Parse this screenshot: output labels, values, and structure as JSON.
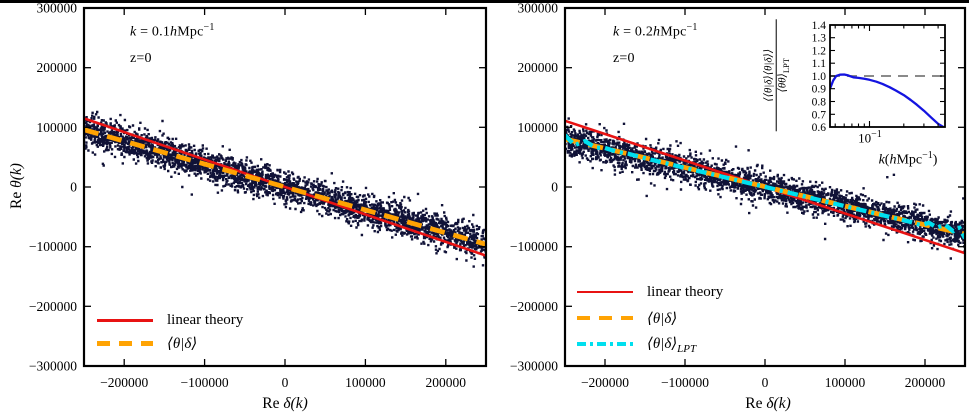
{
  "figure": {
    "background": "#ffffff",
    "top_bar_color": "#000000"
  },
  "colors": {
    "scatter": "#101237",
    "linear_theory": "#e81313",
    "measured": "#ffa303",
    "measured_lpt": "#00dfee",
    "inset_curve": "#1414e0",
    "inset_reference": "#8a8a8a",
    "axis": "#000000"
  },
  "chart_data": [
    {
      "id": "left-panel",
      "type": "scatter",
      "annotation_k": {
        "k": "k",
        "eq": " = 0.1",
        "h": "h",
        "unit": "Mpc",
        "exp": "−1"
      },
      "annotation_z": "z=0",
      "xlabel": {
        "re": "Re ",
        "math": "δ(k)"
      },
      "ylabel": {
        "re": "Re ",
        "math": "θ(k)"
      },
      "xlim": [
        -250000,
        250000
      ],
      "ylim": [
        -300000,
        300000
      ],
      "xticks": [
        -200000,
        -100000,
        0,
        100000,
        200000
      ],
      "yticks": [
        300000,
        200000,
        100000,
        0,
        -100000,
        -200000,
        -300000
      ],
      "series": [
        {
          "id": "simulation-scatter",
          "type": "scatter",
          "color_key": "scatter",
          "n": 3200,
          "slope": -0.384,
          "sigma": 13000,
          "sigma_out": 24000,
          "outlier_frac": 0.03,
          "seed": 20240
        },
        {
          "id": "linear-theory-line",
          "name": "linear theory",
          "type": "line",
          "style": "solid",
          "color_key": "linear_theory",
          "points": [
            [
              -250000,
              115000
            ],
            [
              250000,
              -115000
            ]
          ]
        },
        {
          "id": "mean-theta-delta-line",
          "name": "⟨θ|δ⟩",
          "type": "line",
          "style": "dashed",
          "color_key": "measured",
          "points": [
            [
              -250000,
              96000
            ],
            [
              0,
              0
            ],
            [
              250000,
              -96000
            ]
          ]
        }
      ],
      "legend": [
        {
          "id": "linear-theory",
          "label": "linear theory",
          "sub": "",
          "math": false,
          "color_key": "linear_theory",
          "style": "solid"
        },
        {
          "id": "mean-theta-delta",
          "label": "⟨θ|δ⟩",
          "sub": "",
          "math": true,
          "color_key": "measured",
          "style": "dashed"
        }
      ]
    },
    {
      "id": "right-panel",
      "type": "scatter",
      "annotation_k": {
        "k": "k",
        "eq": " = 0.2",
        "h": "h",
        "unit": "Mpc",
        "exp": "−1"
      },
      "annotation_z": "z=0",
      "xlabel": {
        "re": "Re ",
        "math": "δ(k)"
      },
      "ylabel": {
        "re": "",
        "math": ""
      },
      "xlim": [
        -250000,
        250000
      ],
      "ylim": [
        -300000,
        300000
      ],
      "xticks": [
        -200000,
        -100000,
        0,
        100000,
        200000
      ],
      "yticks": [
        300000,
        200000,
        100000,
        0,
        -100000,
        -200000,
        -300000
      ],
      "series": [
        {
          "id": "simulation-scatter",
          "type": "scatter",
          "color_key": "scatter",
          "n": 3200,
          "slope": -0.32,
          "sigma": 11500,
          "sigma_out": 23000,
          "outlier_frac": 0.06,
          "seed": 9031
        },
        {
          "id": "linear-theory-line",
          "name": "linear theory",
          "type": "line",
          "style": "solid",
          "color_key": "linear_theory",
          "points": [
            [
              -250000,
              111000
            ],
            [
              250000,
              -111000
            ]
          ]
        },
        {
          "id": "mean-theta-delta-line",
          "name": "⟨θ|δ⟩",
          "type": "line",
          "style": "dashed",
          "color_key": "measured",
          "points": [
            [
              -250000,
              80500
            ],
            [
              -150000,
              49000
            ],
            [
              0,
              500
            ],
            [
              150000,
              -48000
            ],
            [
              250000,
              -79000
            ]
          ]
        },
        {
          "id": "mean-theta-delta-lpt-line",
          "name": "⟨θ|δ⟩ LPT",
          "type": "line",
          "style": "dashdot",
          "color_key": "measured_lpt",
          "points": [
            [
              -250000,
              87000
            ],
            [
              -238000,
              70000
            ],
            [
              -225000,
              77000
            ],
            [
              -212000,
              66000
            ],
            [
              -200000,
              65500
            ],
            [
              -185000,
              59000
            ],
            [
              -170000,
              55500
            ],
            [
              -155000,
              50000
            ],
            [
              -140000,
              45000
            ],
            [
              -120000,
              38500
            ],
            [
              -100000,
              32000
            ],
            [
              -80000,
              25800
            ],
            [
              -60000,
              19400
            ],
            [
              -40000,
              12900
            ],
            [
              -20000,
              6500
            ],
            [
              0,
              100
            ],
            [
              20000,
              -6400
            ],
            [
              40000,
              -12800
            ],
            [
              60000,
              -19200
            ],
            [
              80000,
              -25700
            ],
            [
              100000,
              -32100
            ],
            [
              120000,
              -38500
            ],
            [
              140000,
              -44900
            ],
            [
              160000,
              -51400
            ],
            [
              180000,
              -57800
            ],
            [
              195000,
              -64000
            ],
            [
              205000,
              -60000
            ],
            [
              215000,
              -68000
            ],
            [
              225000,
              -63000
            ],
            [
              235000,
              -74000
            ],
            [
              243000,
              -68000
            ],
            [
              250000,
              -86000
            ]
          ]
        }
      ],
      "legend": [
        {
          "id": "linear-theory",
          "label": "linear theory",
          "sub": "",
          "math": false,
          "color_key": "linear_theory",
          "style": "solid"
        },
        {
          "id": "mean-theta-delta",
          "label": "⟨θ|δ⟩",
          "sub": "",
          "math": true,
          "color_key": "measured",
          "style": "dashed"
        },
        {
          "id": "mean-theta-delta-lpt",
          "label": "⟨θ|δ⟩",
          "sub": "LPT",
          "math": true,
          "color_key": "measured_lpt",
          "style": "dashdot"
        }
      ],
      "inset": {
        "type": "line",
        "xscale": "log",
        "xlim": [
          0.045,
          0.46
        ],
        "ylim": [
          0.6,
          1.4
        ],
        "yticks": [
          1.4,
          1.3,
          1.2,
          1.1,
          1.0,
          0.9,
          0.8,
          0.7,
          0.6
        ],
        "xtick_major": {
          "base": "10",
          "exp": "−1",
          "value": 0.1
        },
        "xticks_minor": [
          0.05,
          0.06,
          0.07,
          0.08,
          0.09,
          0.2,
          0.3,
          0.4
        ],
        "reference_line": 1.0,
        "xlabel": {
          "k": "k",
          "open": "(",
          "h": "h",
          "unit": "Mpc",
          "exp": "−1",
          "close": ")"
        },
        "ylabel": {
          "num": "⟨⟨θ|δ⟩⟨θ|δ⟩⟩",
          "den": "⟨θθ⟩",
          "den_sub": "LPT"
        },
        "curve": [
          [
            0.045,
            0.9
          ],
          [
            0.048,
            0.965
          ],
          [
            0.051,
            1.0
          ],
          [
            0.055,
            1.01
          ],
          [
            0.06,
            1.012
          ],
          [
            0.065,
            1.005
          ],
          [
            0.068,
            0.998
          ],
          [
            0.072,
            0.99
          ],
          [
            0.08,
            0.985
          ],
          [
            0.09,
            0.978
          ],
          [
            0.1,
            0.97
          ],
          [
            0.115,
            0.955
          ],
          [
            0.13,
            0.938
          ],
          [
            0.15,
            0.912
          ],
          [
            0.17,
            0.886
          ],
          [
            0.2,
            0.85
          ],
          [
            0.23,
            0.812
          ],
          [
            0.26,
            0.775
          ],
          [
            0.3,
            0.728
          ],
          [
            0.35,
            0.672
          ],
          [
            0.4,
            0.625
          ],
          [
            0.46,
            0.592
          ]
        ]
      }
    }
  ]
}
